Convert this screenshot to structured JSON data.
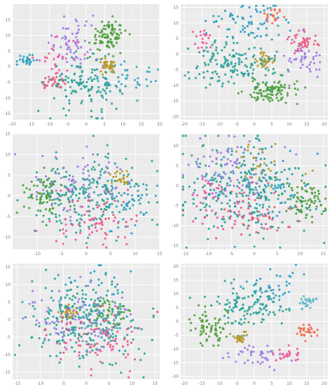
{
  "chart_data": [
    {
      "type": "scatter",
      "xlim": [
        -20,
        20
      ],
      "ylim": [
        -17,
        20
      ],
      "xticks": [
        -20,
        -15,
        -10,
        -5,
        0,
        5,
        10,
        15,
        20
      ],
      "yticks": [
        -15,
        -10,
        -5,
        0,
        5,
        10,
        15
      ],
      "xtick_labels": [
        "-20",
        "-15",
        "-10",
        "-5",
        "0",
        "5",
        "10",
        "15",
        "20"
      ],
      "ytick_labels": [
        "-15",
        "-10",
        "-5",
        "0",
        "5",
        "10",
        "15"
      ],
      "grid": true,
      "clusters": [
        {
          "color": "#4e9f3d",
          "cx": 6,
          "cy": 10,
          "sx": 2.5,
          "sy": 2.5,
          "n": 90
        },
        {
          "color": "#2aa198",
          "cx": 0,
          "cy": -6,
          "sx": 5,
          "sy": 4,
          "n": 140
        },
        {
          "color": "#b59a28",
          "cx": 6,
          "cy": 0,
          "sx": 1.2,
          "sy": 1.2,
          "n": 40
        },
        {
          "color": "#e8567a",
          "cx": -9,
          "cy": -5,
          "sx": 1.5,
          "sy": 1,
          "n": 25
        },
        {
          "color": "#9f7ae6",
          "cx": -3,
          "cy": 8,
          "sx": 4,
          "sy": 4,
          "n": 60
        },
        {
          "color": "#2b9fc4",
          "cx": -16,
          "cy": 2,
          "sx": 1.2,
          "sy": 1,
          "n": 25
        },
        {
          "color": "#3aa8c2",
          "cx": 12,
          "cy": -3,
          "sx": 4,
          "sy": 3,
          "n": 35
        },
        {
          "color": "#f0569c",
          "cx": -8,
          "cy": 3,
          "sx": 3,
          "sy": 3,
          "n": 30
        }
      ]
    },
    {
      "type": "scatter",
      "xlim": [
        -21,
        21
      ],
      "ylim": [
        -21,
        16
      ],
      "xticks": [
        -20,
        -15,
        -10,
        -5,
        0,
        5,
        10,
        15,
        20
      ],
      "yticks": [
        -20,
        -15,
        -10,
        -5,
        0,
        5,
        10,
        15
      ],
      "xtick_labels": [
        "-20",
        "-15",
        "-10",
        "-5",
        "0",
        "5",
        "10",
        "15",
        "20"
      ],
      "ytick_labels": [
        "-20",
        "-15",
        "-10",
        "-5",
        "0",
        "5",
        "10",
        "15"
      ],
      "grid": true,
      "clusters": [
        {
          "color": "#4e9f3d",
          "cx": 5,
          "cy": -12,
          "sx": 4,
          "sy": 2,
          "n": 100
        },
        {
          "color": "#2aa198",
          "cx": -5,
          "cy": -3,
          "sx": 6,
          "sy": 4,
          "n": 150
        },
        {
          "color": "#b59a28",
          "cx": 3,
          "cy": -2,
          "sx": 1.2,
          "sy": 1.2,
          "n": 35
        },
        {
          "color": "#e8567a",
          "cx": 14,
          "cy": 4,
          "sx": 2,
          "sy": 2,
          "n": 40
        },
        {
          "color": "#9f7ae6",
          "cx": 14,
          "cy": -2,
          "sx": 2.5,
          "sy": 3,
          "n": 45
        },
        {
          "color": "#2b9fc4",
          "cx": -2,
          "cy": 10,
          "sx": 6,
          "sy": 3,
          "n": 70
        },
        {
          "color": "#ef6a4a",
          "cx": 5,
          "cy": 12,
          "sx": 1.5,
          "sy": 1.5,
          "n": 20
        },
        {
          "color": "#f0569c",
          "cx": -15,
          "cy": 5,
          "sx": 2,
          "sy": 2,
          "n": 20
        }
      ]
    },
    {
      "type": "scatter",
      "xlim": [
        -15,
        15
      ],
      "ylim": [
        -13,
        15
      ],
      "xticks": [
        -10,
        -5,
        0,
        5,
        10,
        15
      ],
      "yticks": [
        -10,
        -5,
        0,
        5,
        10,
        15
      ],
      "xtick_labels": [
        "-10",
        "-5",
        "0",
        "5",
        "10",
        "15"
      ],
      "ytick_labels": [
        "-10",
        "-5",
        "0",
        "5",
        "10",
        "15"
      ],
      "grid": true,
      "clusters": [
        {
          "color": "#4e9f3d",
          "cx": -9,
          "cy": 0,
          "sx": 2,
          "sy": 2.5,
          "n": 70
        },
        {
          "color": "#2aa198",
          "cx": 0,
          "cy": 0,
          "sx": 6,
          "sy": 5,
          "n": 220
        },
        {
          "color": "#b59a28",
          "cx": 7,
          "cy": 4,
          "sx": 1,
          "sy": 1,
          "n": 25
        },
        {
          "color": "#e8567a",
          "cx": 3,
          "cy": -4,
          "sx": 5,
          "sy": 4,
          "n": 40
        },
        {
          "color": "#9f7ae6",
          "cx": -2,
          "cy": 3,
          "sx": 5,
          "sy": 4,
          "n": 70
        },
        {
          "color": "#2b9fc4",
          "cx": 8,
          "cy": -2,
          "sx": 3,
          "sy": 3,
          "n": 40
        },
        {
          "color": "#f0569c",
          "cx": 0,
          "cy": -7,
          "sx": 5,
          "sy": 3,
          "n": 35
        }
      ]
    },
    {
      "type": "scatter",
      "xlim": [
        -16,
        16
      ],
      "ylim": [
        -16,
        13
      ],
      "xticks": [
        -15,
        -10,
        -5,
        0,
        5,
        10,
        15
      ],
      "yticks": [
        -15,
        -10,
        -5,
        0,
        5,
        10
      ],
      "xtick_labels": [
        "-15",
        "-10",
        "-5",
        "0",
        "5",
        "10",
        "15"
      ],
      "ytick_labels": [
        "-15",
        "-10",
        "-5",
        "0",
        "5",
        "10"
      ],
      "grid": true,
      "clusters": [
        {
          "color": "#4e9f3d",
          "cx": 11,
          "cy": -4,
          "sx": 2.5,
          "sy": 2.5,
          "n": 70
        },
        {
          "color": "#2aa198",
          "cx": -2,
          "cy": 0,
          "sx": 7,
          "sy": 6,
          "n": 260
        },
        {
          "color": "#b59a28",
          "cx": 2,
          "cy": 5,
          "sx": 3,
          "sy": 3,
          "n": 30
        },
        {
          "color": "#e8567a",
          "cx": 0,
          "cy": -8,
          "sx": 4,
          "sy": 3,
          "n": 50
        },
        {
          "color": "#9f7ae6",
          "cx": -6,
          "cy": 4,
          "sx": 5,
          "sy": 4,
          "n": 80
        },
        {
          "color": "#2b9fc4",
          "cx": 3,
          "cy": -2,
          "sx": 6,
          "sy": 5,
          "n": 70
        },
        {
          "color": "#f0569c",
          "cx": -8,
          "cy": -4,
          "sx": 4,
          "sy": 4,
          "n": 50
        }
      ]
    },
    {
      "type": "scatter",
      "xlim": [
        -16,
        16
      ],
      "ylim": [
        -17,
        16
      ],
      "xticks": [
        -15,
        -10,
        -5,
        0,
        5,
        10,
        15
      ],
      "yticks": [
        -15,
        -10,
        -5,
        0,
        5,
        10,
        15
      ],
      "xtick_labels": [
        "-15",
        "-10",
        "-5",
        "0",
        "5",
        "10",
        "15"
      ],
      "ytick_labels": [
        "-15",
        "-10",
        "-5",
        "0",
        "5",
        "10",
        "15"
      ],
      "grid": true,
      "clusters": [
        {
          "color": "#4e9f3d",
          "cx": 5,
          "cy": 2,
          "sx": 2,
          "sy": 2,
          "n": 45
        },
        {
          "color": "#2aa198",
          "cx": 0,
          "cy": -1,
          "sx": 6.5,
          "sy": 6,
          "n": 230
        },
        {
          "color": "#b59a28",
          "cx": -4,
          "cy": 2,
          "sx": 1.2,
          "sy": 1.2,
          "n": 30
        },
        {
          "color": "#e8567a",
          "cx": 3,
          "cy": -3,
          "sx": 5,
          "sy": 5,
          "n": 50
        },
        {
          "color": "#9f7ae6",
          "cx": -3,
          "cy": 0,
          "sx": 6,
          "sy": 5,
          "n": 80
        },
        {
          "color": "#2b9fc4",
          "cx": 1,
          "cy": 5,
          "sx": 6,
          "sy": 5,
          "n": 60
        },
        {
          "color": "#f0569c",
          "cx": 2,
          "cy": -8,
          "sx": 5,
          "sy": 4,
          "n": 40
        }
      ]
    },
    {
      "type": "scatter",
      "xlim": [
        -21,
        21
      ],
      "ylim": [
        -21,
        21
      ],
      "xticks": [
        -20,
        -15,
        -10,
        -5,
        0,
        5,
        10,
        15,
        20
      ],
      "yticks": [
        -20,
        -15,
        -10,
        -5,
        0,
        5,
        10,
        15,
        20
      ],
      "xtick_labels": [
        "-20",
        "-15",
        "-10",
        "-5",
        "0",
        "5",
        "10",
        "15",
        "20"
      ],
      "ytick_labels": [
        "-20",
        "-15",
        "-10",
        "-5",
        "0",
        "5",
        "10",
        "15",
        "20"
      ],
      "grid": true,
      "clusters": [
        {
          "color": "#4e9f3d",
          "cx": -13,
          "cy": -2,
          "sx": 3,
          "sy": 3,
          "n": 70
        },
        {
          "color": "#2aa198",
          "cx": -2,
          "cy": 6,
          "sx": 5,
          "sy": 4,
          "n": 120
        },
        {
          "color": "#b59a28",
          "cx": -4,
          "cy": -6,
          "sx": 1.2,
          "sy": 1.2,
          "n": 30
        },
        {
          "color": "#ef6a4a",
          "cx": 15,
          "cy": -3,
          "sx": 2,
          "sy": 1.2,
          "n": 30
        },
        {
          "color": "#9f7ae6",
          "cx": 1,
          "cy": -13,
          "sx": 4,
          "sy": 2,
          "n": 40
        },
        {
          "color": "#2b9fc4",
          "cx": 5,
          "cy": 12,
          "sx": 4,
          "sy": 3,
          "n": 40
        },
        {
          "color": "#f0569c",
          "cx": 10,
          "cy": -12,
          "sx": 2,
          "sy": 1.5,
          "n": 25
        },
        {
          "color": "#5ab8c8",
          "cx": 15,
          "cy": 7,
          "sx": 1.2,
          "sy": 1.2,
          "n": 25
        }
      ]
    }
  ]
}
